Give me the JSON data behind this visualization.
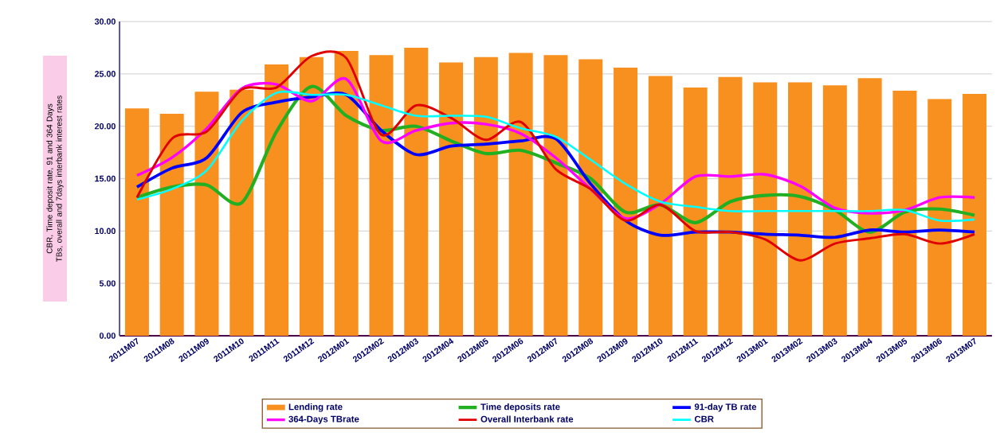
{
  "chart_data": {
    "type": "bar",
    "ylabel": "CBR, Time deposit rate, 91 and 364 Days TBs, overall and 7days interbank interest rates",
    "categories": [
      "2011M07",
      "2011M08",
      "2011M09",
      "2011M10",
      "2011M11",
      "2011M12",
      "2012M01",
      "2012M02",
      "2012M03",
      "2012M04",
      "2012M05",
      "2012M06",
      "2012M07",
      "2012M08",
      "2012M09",
      "2012M10",
      "2012M11",
      "2012M12",
      "2013M01",
      "2013M02",
      "2013M03",
      "2013M04",
      "2013M05",
      "2013M06",
      "2013M07"
    ],
    "series": [
      {
        "name": "Lending rate",
        "color": "#f7901e",
        "values": [
          21.7,
          21.2,
          23.3,
          23.5,
          25.9,
          26.6,
          27.2,
          26.8,
          27.5,
          26.1,
          26.6,
          27.0,
          26.8,
          26.4,
          25.6,
          24.8,
          23.7,
          24.7,
          24.2,
          24.2,
          23.9,
          24.6,
          23.4,
          22.6,
          23.1
        ]
      },
      {
        "name": "Time deposits rate",
        "type": "line",
        "color": "#22b022",
        "values": [
          13.2,
          14.2,
          14.4,
          12.7,
          19.5,
          23.8,
          21.0,
          19.6,
          20.0,
          18.6,
          17.4,
          17.7,
          16.5,
          15.0,
          11.8,
          12.5,
          10.8,
          12.8,
          13.4,
          13.3,
          12.0,
          9.9,
          11.8,
          12.1,
          11.5
        ]
      },
      {
        "name": "91-day TB rate",
        "type": "line",
        "color": "#0000ff",
        "values": [
          14.2,
          16.0,
          17.0,
          21.3,
          22.3,
          22.8,
          23.0,
          19.6,
          17.3,
          18.1,
          18.3,
          18.6,
          18.8,
          14.5,
          11.0,
          9.6,
          9.9,
          9.9,
          9.7,
          9.6,
          9.4,
          10.1,
          9.9,
          10.1,
          9.9
        ]
      },
      {
        "name": "364-Days TBrate",
        "type": "line",
        "color": "#ff00ff",
        "values": [
          15.3,
          17.0,
          19.8,
          23.6,
          24.0,
          22.4,
          24.5,
          18.6,
          19.6,
          20.3,
          20.2,
          19.3,
          17.0,
          14.0,
          11.2,
          12.6,
          15.2,
          15.2,
          15.4,
          14.3,
          12.2,
          11.7,
          12.0,
          13.2,
          13.2
        ]
      },
      {
        "name": "Overall Interbank rate",
        "type": "line",
        "color": "#e00000",
        "values": [
          13.2,
          18.8,
          19.5,
          23.5,
          23.7,
          26.7,
          26.5,
          19.2,
          22.0,
          20.8,
          18.7,
          20.4,
          15.9,
          14.0,
          11.0,
          12.5,
          10.0,
          9.9,
          9.2,
          7.2,
          8.8,
          9.3,
          9.7,
          8.8,
          9.7
        ]
      },
      {
        "name": "CBR",
        "type": "line",
        "color": "#00ffff",
        "values": [
          13.0,
          14.0,
          15.8,
          20.5,
          23.2,
          23.0,
          23.0,
          22.0,
          21.0,
          21.0,
          20.9,
          19.8,
          19.0,
          16.8,
          14.5,
          12.8,
          12.3,
          11.9,
          11.9,
          11.9,
          11.9,
          11.9,
          12.0,
          11.0,
          11.1
        ]
      }
    ],
    "ylim": [
      0,
      30
    ],
    "yticks": [
      {
        "value": 0,
        "label": "0.00"
      },
      {
        "value": 5,
        "label": "5.00"
      },
      {
        "value": 10,
        "label": "10.00"
      },
      {
        "value": 15,
        "label": "15.00"
      },
      {
        "value": 20,
        "label": "20.00"
      },
      {
        "value": 25,
        "label": "25.00"
      },
      {
        "value": 30,
        "label": "30.00"
      }
    ],
    "grid": "y",
    "legend": "bottom"
  }
}
